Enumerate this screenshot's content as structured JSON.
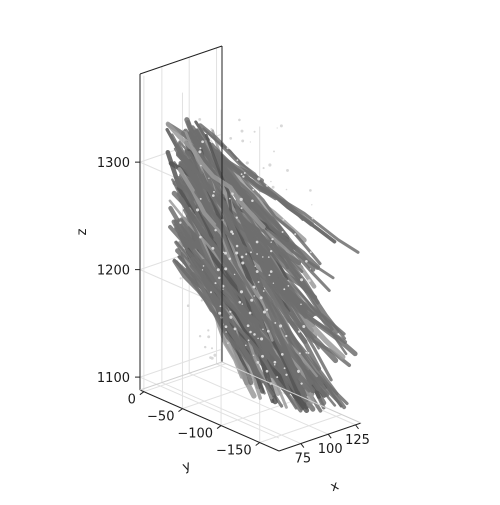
{
  "chart_data": {
    "type": "scatter",
    "dimensions": "3d",
    "title": "",
    "xlabel": "x",
    "ylabel": "y",
    "zlabel": "z",
    "xlim": [
      55,
      130
    ],
    "ylim": [
      5,
      -175
    ],
    "zlim": [
      1088,
      1382
    ],
    "x_ticks": [
      75,
      100,
      125
    ],
    "x_tick_labels": [
      "75",
      "100",
      "125"
    ],
    "y_ticks": [
      0,
      -50,
      -100,
      -150
    ],
    "y_tick_labels": [
      "0",
      "−50",
      "−100",
      "−150"
    ],
    "z_ticks": [
      1100,
      1200,
      1300
    ],
    "z_tick_labels": [
      "1100",
      "1200",
      "1300"
    ],
    "grid": true,
    "legend": "none",
    "series_color": "#6e6e6e",
    "highlight_color": "#d8d8d8"
  }
}
